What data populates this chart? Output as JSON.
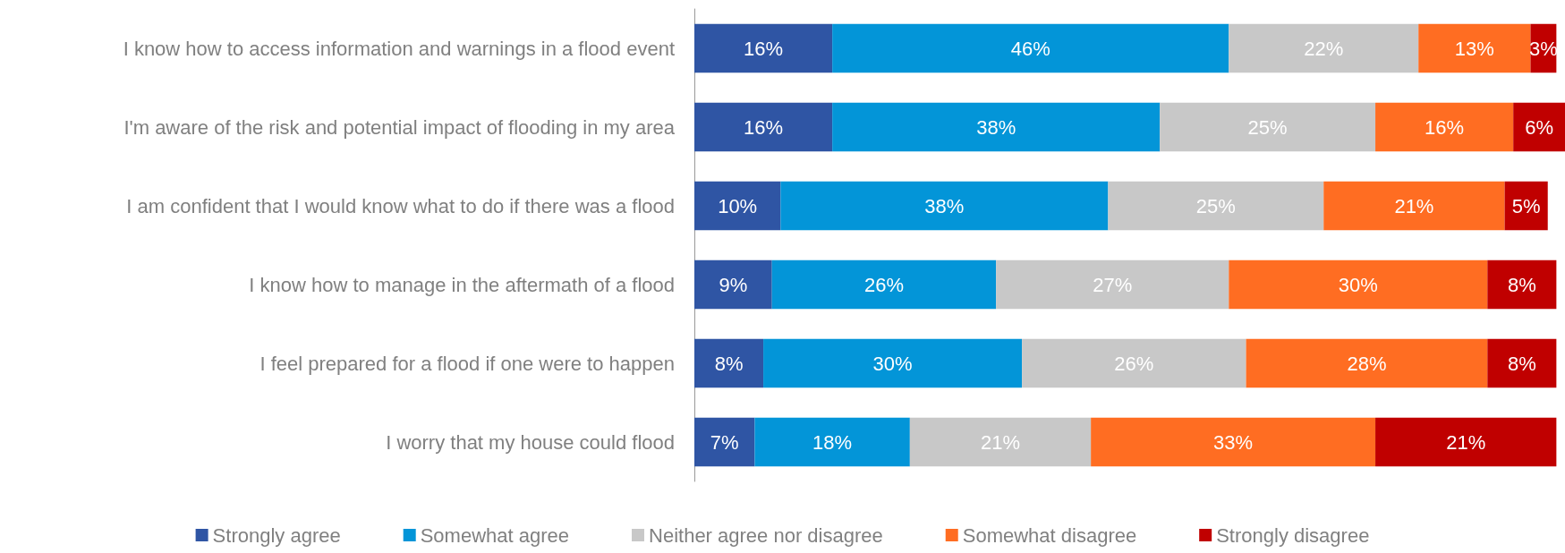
{
  "chart_data": {
    "type": "bar",
    "orientation": "horizontal",
    "stacked": true,
    "legend": "bottom",
    "tick_labels": "y",
    "categories": [
      "I know how to access information and warnings in a flood event",
      "I'm aware of the risk and potential impact of flooding in my area",
      "I am confident that I would know what to do if there was a flood",
      "I know how to manage in the aftermath of a flood",
      "I feel prepared for a flood if one were to happen",
      "I worry that my house could flood"
    ],
    "series": [
      {
        "name": "Strongly agree",
        "color": "#2f55a4",
        "values": [
          16,
          16,
          10,
          9,
          8,
          7
        ],
        "value_labels": [
          "16%",
          "16%",
          "10%",
          "9%",
          "8%",
          "7%"
        ]
      },
      {
        "name": "Somewhat agree",
        "color": "#0395d8",
        "values": [
          46,
          38,
          38,
          26,
          30,
          18
        ],
        "value_labels": [
          "46%",
          "38%",
          "38%",
          "26%",
          "30%",
          "18%"
        ]
      },
      {
        "name": "Neither agree nor disagree",
        "color": "#c8c8c8",
        "values": [
          22,
          25,
          25,
          27,
          26,
          21
        ],
        "value_labels": [
          "22%",
          "25%",
          "25%",
          "27%",
          "26%",
          "21%"
        ]
      },
      {
        "name": "Somewhat disagree",
        "color": "#ff6d22",
        "values": [
          13,
          16,
          21,
          30,
          28,
          33
        ],
        "value_labels": [
          "13%",
          "16%",
          "21%",
          "30%",
          "28%",
          "33%"
        ]
      },
      {
        "name": "Strongly disagree",
        "color": "#c00000",
        "values": [
          3,
          6,
          5,
          8,
          8,
          21
        ],
        "value_labels": [
          "3%",
          "6%",
          "5%",
          "8%",
          "8%",
          "21%"
        ]
      }
    ]
  }
}
